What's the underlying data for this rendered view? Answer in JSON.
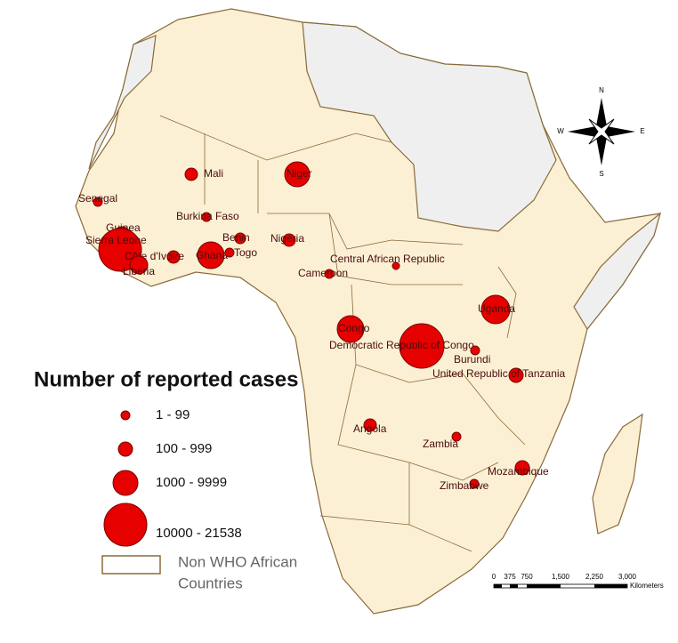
{
  "legend": {
    "title": "Number of reported cases",
    "entries": [
      "1 - 99",
      "100 - 999",
      "1000 - 9999",
      "10000 - 21538"
    ],
    "non_who": [
      "Non WHO African",
      "Countries"
    ]
  },
  "countries": [
    "Mali",
    "Niger",
    "Senegal",
    "Burkina Faso",
    "Guinea",
    "Sierra Leone",
    "Côte d'Ivoire",
    "Liberia",
    "Ghana",
    "Benin",
    "Togo",
    "Nigeria",
    "Cameroon",
    "Central African Republic",
    "Congo",
    "Democratic Republic of Congo",
    "Uganda",
    "Burundi",
    "United Republic of Tanzania",
    "Angola",
    "Zambia",
    "Mozambique",
    "Zimbabwe"
  ],
  "compass": {
    "n": "N",
    "s": "S",
    "e": "E",
    "w": "W"
  },
  "scale_bar": {
    "labels": [
      "0",
      "375",
      "750",
      "1,500",
      "2,250",
      "3,000"
    ],
    "unit": "Kilometers"
  }
}
